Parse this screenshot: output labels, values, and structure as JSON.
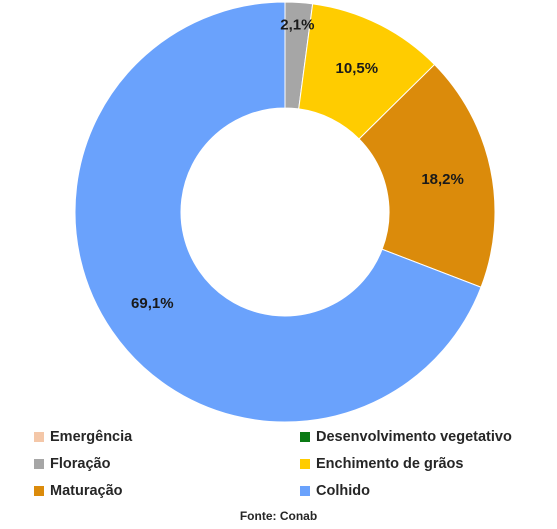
{
  "chart_data": {
    "type": "pie",
    "variant": "donut",
    "title": "",
    "categories": [
      "Emergência",
      "Desenvolvimento vegetativo",
      "Floração",
      "Enchimento de grãos",
      "Maturação",
      "Colhido"
    ],
    "values": [
      0.0,
      0.0,
      2.1,
      10.5,
      18.2,
      69.1
    ],
    "data_labels": [
      "",
      "",
      "2,1%",
      "10,5%",
      "18,2%",
      "69,1%"
    ],
    "colors": [
      "#f4c7a8",
      "#0a7a14",
      "#a6a6a6",
      "#ffcc00",
      "#db8b0b",
      "#6aa2fc"
    ],
    "legend_position": "bottom",
    "source": "Fonte: Conab"
  }
}
